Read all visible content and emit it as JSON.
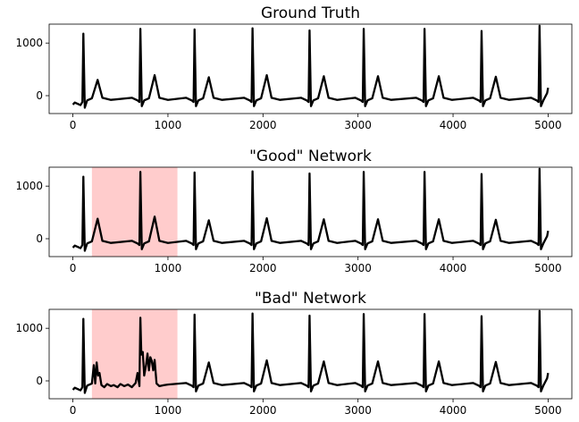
{
  "chart_data": [
    {
      "type": "line",
      "title": "Ground Truth",
      "color": "#000000",
      "xlim": [
        -250,
        5250
      ],
      "ylim": [
        -340,
        1360
      ],
      "xticks": [
        0,
        1000,
        2000,
        3000,
        4000,
        5000
      ],
      "yticks": [
        0,
        1000
      ],
      "x": [
        0,
        20,
        80,
        100,
        110,
        125,
        150,
        200,
        260,
        310,
        400,
        620,
        680,
        700,
        710,
        725,
        750,
        800,
        860,
        910,
        1000,
        1190,
        1250,
        1270,
        1280,
        1295,
        1320,
        1370,
        1430,
        1480,
        1570,
        1800,
        1860,
        1880,
        1890,
        1905,
        1930,
        1980,
        2040,
        2090,
        2180,
        2400,
        2460,
        2480,
        2490,
        2505,
        2530,
        2580,
        2640,
        2690,
        2780,
        2970,
        3030,
        3050,
        3060,
        3075,
        3100,
        3150,
        3210,
        3260,
        3350,
        3610,
        3670,
        3690,
        3700,
        3715,
        3740,
        3790,
        3850,
        3900,
        3990,
        4210,
        4270,
        4290,
        4300,
        4315,
        4340,
        4390,
        4450,
        4500,
        4590,
        4820,
        4880,
        4900,
        4910,
        4925,
        4950,
        4990,
        5000
      ],
      "values": [
        -170,
        -130,
        -180,
        -120,
        1180,
        -230,
        -90,
        -50,
        300,
        -40,
        -80,
        -40,
        -90,
        -120,
        1270,
        -200,
        -90,
        -50,
        390,
        -40,
        -80,
        -40,
        -90,
        -120,
        1260,
        -200,
        -90,
        -50,
        350,
        -40,
        -80,
        -40,
        -90,
        -120,
        1280,
        -200,
        -90,
        -50,
        390,
        -40,
        -80,
        -40,
        -90,
        -120,
        1240,
        -200,
        -90,
        -50,
        370,
        -40,
        -80,
        -40,
        -90,
        -120,
        1270,
        -200,
        -90,
        -50,
        370,
        -40,
        -80,
        -40,
        -90,
        -120,
        1270,
        -200,
        -90,
        -50,
        370,
        -40,
        -80,
        -40,
        -90,
        -120,
        1230,
        -200,
        -90,
        -50,
        360,
        -40,
        -80,
        -40,
        -90,
        -120,
        1330,
        -200,
        -90,
        50,
        150
      ]
    },
    {
      "type": "line",
      "title": "\"Good\" Network",
      "color": "#000000",
      "highlight": [
        200,
        1100
      ],
      "highlight_color": "#ffcccc",
      "xlim": [
        -250,
        5250
      ],
      "ylim": [
        -340,
        1360
      ],
      "xticks": [
        0,
        1000,
        2000,
        3000,
        4000,
        5000
      ],
      "yticks": [
        0,
        1000
      ],
      "x": [
        0,
        20,
        80,
        100,
        110,
        125,
        150,
        200,
        260,
        310,
        400,
        620,
        680,
        700,
        710,
        725,
        750,
        800,
        860,
        910,
        1000,
        1190,
        1250,
        1270,
        1280,
        1295,
        1320,
        1370,
        1430,
        1480,
        1570,
        1800,
        1860,
        1880,
        1890,
        1905,
        1930,
        1980,
        2040,
        2090,
        2180,
        2400,
        2460,
        2480,
        2490,
        2505,
        2530,
        2580,
        2640,
        2690,
        2780,
        2970,
        3030,
        3050,
        3060,
        3075,
        3100,
        3150,
        3210,
        3260,
        3350,
        3610,
        3670,
        3690,
        3700,
        3715,
        3740,
        3790,
        3850,
        3900,
        3990,
        4210,
        4270,
        4290,
        4300,
        4315,
        4340,
        4390,
        4450,
        4500,
        4590,
        4820,
        4880,
        4900,
        4910,
        4925,
        4950,
        4990,
        5000
      ],
      "values": [
        -170,
        -130,
        -180,
        -120,
        1180,
        -230,
        -90,
        -50,
        380,
        -40,
        -80,
        -40,
        -90,
        -120,
        1270,
        -200,
        -90,
        -50,
        420,
        -40,
        -80,
        -40,
        -90,
        -120,
        1260,
        -200,
        -90,
        -50,
        350,
        -40,
        -80,
        -40,
        -90,
        -120,
        1280,
        -200,
        -90,
        -50,
        390,
        -40,
        -80,
        -40,
        -90,
        -120,
        1240,
        -200,
        -90,
        -50,
        370,
        -40,
        -80,
        -40,
        -90,
        -120,
        1270,
        -200,
        -90,
        -50,
        370,
        -40,
        -80,
        -40,
        -90,
        -120,
        1270,
        -200,
        -90,
        -50,
        370,
        -40,
        -80,
        -40,
        -90,
        -120,
        1230,
        -200,
        -90,
        -50,
        360,
        -40,
        -80,
        -40,
        -90,
        -120,
        1330,
        -200,
        -90,
        50,
        150
      ]
    },
    {
      "type": "line",
      "title": "\"Bad\" Network",
      "color": "#000000",
      "highlight": [
        200,
        1100
      ],
      "highlight_color": "#ffcccc",
      "xlim": [
        -250,
        5250
      ],
      "ylim": [
        -340,
        1360
      ],
      "xticks": [
        0,
        1000,
        2000,
        3000,
        4000,
        5000
      ],
      "yticks": [
        0,
        1000
      ],
      "x": [
        0,
        20,
        80,
        100,
        110,
        125,
        150,
        200,
        220,
        235,
        250,
        265,
        280,
        300,
        330,
        360,
        400,
        430,
        470,
        500,
        540,
        580,
        620,
        660,
        680,
        700,
        710,
        720,
        735,
        750,
        770,
        785,
        800,
        815,
        830,
        845,
        860,
        880,
        910,
        960,
        1000,
        1190,
        1250,
        1270,
        1280,
        1295,
        1320,
        1370,
        1430,
        1480,
        1570,
        1800,
        1860,
        1880,
        1890,
        1905,
        1930,
        1980,
        2040,
        2090,
        2180,
        2400,
        2460,
        2480,
        2490,
        2505,
        2530,
        2580,
        2640,
        2690,
        2780,
        2970,
        3030,
        3050,
        3060,
        3075,
        3100,
        3150,
        3210,
        3260,
        3350,
        3610,
        3670,
        3690,
        3700,
        3715,
        3740,
        3790,
        3850,
        3900,
        3990,
        4210,
        4270,
        4290,
        4300,
        4315,
        4340,
        4390,
        4450,
        4500,
        4590,
        4820,
        4880,
        4900,
        4910,
        4925,
        4950,
        4990,
        5000
      ],
      "values": [
        -170,
        -130,
        -180,
        -120,
        1180,
        -230,
        -90,
        -50,
        300,
        -50,
        350,
        100,
        150,
        -80,
        -120,
        -60,
        -100,
        -80,
        -120,
        -60,
        -100,
        -70,
        -120,
        -40,
        150,
        -100,
        1200,
        500,
        550,
        100,
        300,
        520,
        200,
        450,
        380,
        200,
        400,
        -50,
        -100,
        -80,
        -70,
        -40,
        -90,
        -120,
        1260,
        -200,
        -90,
        -50,
        350,
        -40,
        -80,
        -40,
        -90,
        -120,
        1280,
        -200,
        -90,
        -50,
        390,
        -40,
        -80,
        -40,
        -90,
        -120,
        1240,
        -200,
        -90,
        -50,
        370,
        -40,
        -80,
        -40,
        -90,
        -120,
        1270,
        -200,
        -90,
        -50,
        370,
        -40,
        -80,
        -40,
        -90,
        -120,
        1270,
        -200,
        -90,
        -50,
        370,
        -40,
        -80,
        -40,
        -90,
        -120,
        1230,
        -200,
        -90,
        -50,
        360,
        -40,
        -80,
        -40,
        -90,
        -120,
        1330,
        -200,
        -90,
        50,
        150
      ]
    }
  ]
}
